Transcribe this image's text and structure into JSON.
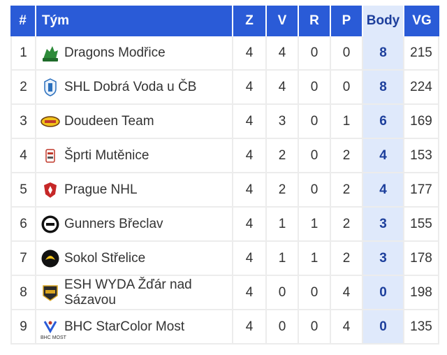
{
  "headers": {
    "rank": "#",
    "team": "Tým",
    "z": "Z",
    "v": "V",
    "r": "R",
    "p": "P",
    "points": "Body",
    "vg": "VG"
  },
  "colors": {
    "header_bg": "#2a5bd7",
    "points_col_bg": "#dfe9fb",
    "points_text": "#1d3f9c"
  },
  "rows": [
    {
      "rank": "1",
      "team": "Dragons Modřice",
      "z": "4",
      "v": "4",
      "r": "0",
      "p": "0",
      "points": "8",
      "vg": "215",
      "logo": "dragon-logo-icon"
    },
    {
      "rank": "2",
      "team": "SHL Dobrá Voda u ČB",
      "z": "4",
      "v": "4",
      "r": "0",
      "p": "0",
      "points": "8",
      "vg": "224",
      "logo": "shl-logo-icon"
    },
    {
      "rank": "3",
      "team": "Doudeen Team",
      "z": "4",
      "v": "3",
      "r": "0",
      "p": "1",
      "points": "6",
      "vg": "169",
      "logo": "doudeen-logo-icon"
    },
    {
      "rank": "4",
      "team": "Šprti Mutěnice",
      "z": "4",
      "v": "2",
      "r": "0",
      "p": "2",
      "points": "4",
      "vg": "153",
      "logo": "sprti-logo-icon"
    },
    {
      "rank": "5",
      "team": "Prague NHL",
      "z": "4",
      "v": "2",
      "r": "0",
      "p": "2",
      "points": "4",
      "vg": "177",
      "logo": "prague-nhl-logo-icon"
    },
    {
      "rank": "6",
      "team": "Gunners Břeclav",
      "z": "4",
      "v": "1",
      "r": "1",
      "p": "2",
      "points": "3",
      "vg": "155",
      "logo": "gunners-logo-icon"
    },
    {
      "rank": "7",
      "team": "Sokol Střelice",
      "z": "4",
      "v": "1",
      "r": "1",
      "p": "2",
      "points": "3",
      "vg": "178",
      "logo": "sokol-logo-icon"
    },
    {
      "rank": "8",
      "team": "ESH WYDA Žďár nad Sázavou",
      "z": "4",
      "v": "0",
      "r": "0",
      "p": "4",
      "points": "0",
      "vg": "198",
      "logo": "esh-logo-icon"
    },
    {
      "rank": "9",
      "team": "BHC StarColor Most",
      "z": "4",
      "v": "0",
      "r": "0",
      "p": "4",
      "points": "0",
      "vg": "135",
      "logo": "bhc-logo-icon",
      "logo_text": "BHC MOST"
    }
  ]
}
